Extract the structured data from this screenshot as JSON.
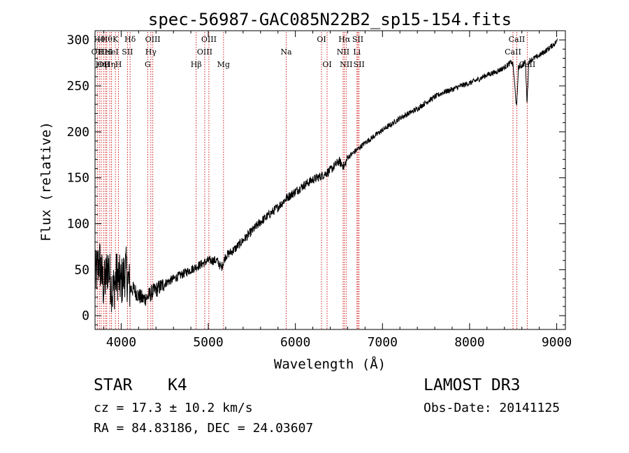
{
  "chart_data": {
    "type": "line",
    "title": "spec-56987-GAC085N22B2_sp15-154.fits",
    "xlabel": "Wavelength (Å)",
    "ylabel": "Flux (relative)",
    "xlim": [
      3700,
      9100
    ],
    "ylim": [
      -15,
      310
    ],
    "x_ticks": [
      4000,
      5000,
      6000,
      7000,
      8000,
      9000
    ],
    "x_tick_labels": [
      "4000",
      "5000",
      "6000",
      "7000",
      "8000",
      "9000"
    ],
    "y_ticks": [
      0,
      50,
      100,
      150,
      200,
      250,
      300
    ],
    "y_tick_labels": [
      "0",
      "50",
      "100",
      "150",
      "200",
      "250",
      "300"
    ],
    "series": [
      {
        "name": "flux",
        "x": [
          3700,
          3750,
          3800,
          3850,
          3900,
          3950,
          4000,
          4050,
          4100,
          4150,
          4200,
          4250,
          4300,
          4350,
          4400,
          4500,
          4600,
          4700,
          4800,
          4900,
          5000,
          5100,
          5150,
          5200,
          5300,
          5400,
          5500,
          5600,
          5700,
          5800,
          5900,
          6000,
          6100,
          6200,
          6300,
          6400,
          6500,
          6560,
          6600,
          6700,
          6800,
          6900,
          7000,
          7100,
          7200,
          7300,
          7400,
          7500,
          7600,
          7700,
          7800,
          7900,
          8000,
          8100,
          8200,
          8300,
          8400,
          8480,
          8500,
          8540,
          8560,
          8600,
          8640,
          8660,
          8680,
          8700,
          8800,
          8900,
          9000,
          9010
        ],
        "y": [
          40,
          60,
          30,
          55,
          25,
          45,
          35,
          50,
          30,
          28,
          22,
          18,
          20,
          25,
          28,
          35,
          40,
          45,
          50,
          55,
          60,
          60,
          52,
          65,
          72,
          82,
          92,
          102,
          110,
          118,
          128,
          135,
          142,
          148,
          152,
          158,
          168,
          162,
          172,
          180,
          188,
          195,
          202,
          208,
          215,
          220,
          225,
          232,
          238,
          243,
          246,
          250,
          253,
          257,
          262,
          265,
          270,
          276,
          272,
          225,
          270,
          272,
          276,
          232,
          276,
          278,
          283,
          290,
          298,
          302
        ],
        "color": "#000000"
      }
    ],
    "lines": [
      {
        "wavelength": 3727,
        "label": "OII",
        "row": 2
      },
      {
        "wavelength": 3750,
        "label": "Hθ",
        "row": 1
      },
      {
        "wavelength": 3771,
        "label": "Hη",
        "row": 3
      },
      {
        "wavelength": 3798,
        "label": "OII",
        "row": 3
      },
      {
        "wavelength": 3820,
        "label": "HeI",
        "row": 2
      },
      {
        "wavelength": 3835,
        "label": "Hθ",
        "row": 1
      },
      {
        "wavelength": 3869,
        "label": "Hη",
        "row": 3
      },
      {
        "wavelength": 3889,
        "label": "HeI",
        "row": 2
      },
      {
        "wavelength": 3934,
        "label": "K",
        "row": 1
      },
      {
        "wavelength": 3969,
        "label": "H",
        "row": 3
      },
      {
        "wavelength": 4072,
        "label": "SII",
        "row": 2
      },
      {
        "wavelength": 4102,
        "label": "Hδ",
        "row": 1
      },
      {
        "wavelength": 4305,
        "label": "G",
        "row": 3
      },
      {
        "wavelength": 4341,
        "label": "Hγ",
        "row": 2
      },
      {
        "wavelength": 4363,
        "label": "OIII",
        "row": 1
      },
      {
        "wavelength": 4861,
        "label": "Hβ",
        "row": 3
      },
      {
        "wavelength": 4959,
        "label": "OIII",
        "row": 2
      },
      {
        "wavelength": 5007,
        "label": "OIII",
        "row": 1
      },
      {
        "wavelength": 5175,
        "label": "Mg",
        "row": 3
      },
      {
        "wavelength": 5894,
        "label": "Na",
        "row": 2
      },
      {
        "wavelength": 6300,
        "label": "OI",
        "row": 1
      },
      {
        "wavelength": 6364,
        "label": "OI",
        "row": 3
      },
      {
        "wavelength": 6548,
        "label": "NII",
        "row": 2
      },
      {
        "wavelength": 6563,
        "label": "Hα",
        "row": 1
      },
      {
        "wavelength": 6583,
        "label": "NII",
        "row": 3
      },
      {
        "wavelength": 6707,
        "label": "Li",
        "row": 2
      },
      {
        "wavelength": 6717,
        "label": "SII",
        "row": 1
      },
      {
        "wavelength": 6731,
        "label": "SII",
        "row": 3
      },
      {
        "wavelength": 8498,
        "label": "CaII",
        "row": 2
      },
      {
        "wavelength": 8542,
        "label": "CaII",
        "row": 1
      },
      {
        "wavelength": 8662,
        "label": "CaII",
        "row": 3
      }
    ],
    "colors": {
      "spectrum": "#000000",
      "line_markers": "#cc0000",
      "axes": "#000000"
    }
  },
  "info": {
    "object_class": "STAR",
    "subclass": "K4",
    "redshift_text": "cz = 17.3 ± 10.2 km/s",
    "coords_text": "RA =  84.83186, DEC =  24.03607",
    "survey": "LAMOST DR3",
    "obs_date": "Obs-Date: 20141125"
  }
}
